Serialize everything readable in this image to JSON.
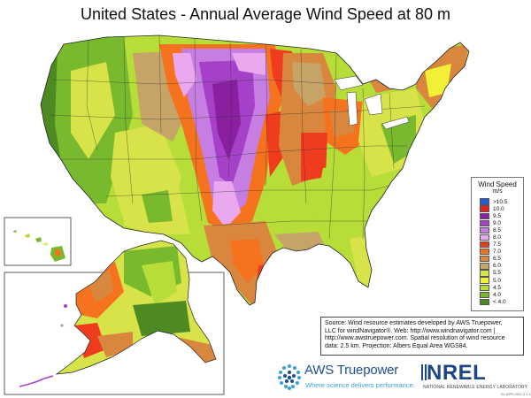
{
  "title": "United States - Annual Average Wind Speed at 80 m",
  "legend": {
    "title": "Wind Speed",
    "unit": "m/s",
    "items": [
      {
        "label": ">10.5",
        "color": "#1f5cd6"
      },
      {
        "label": "10.0",
        "color": "#e8201f"
      },
      {
        "label": "9.5",
        "color": "#8a1fa0"
      },
      {
        "label": "9.0",
        "color": "#a640c8"
      },
      {
        "label": "8.5",
        "color": "#c67ee2"
      },
      {
        "label": "8.0",
        "color": "#eaa9ee"
      },
      {
        "label": "7.5",
        "color": "#ef3c1e"
      },
      {
        "label": "7.0",
        "color": "#f5731f"
      },
      {
        "label": "6.5",
        "color": "#d9873e"
      },
      {
        "label": "6.0",
        "color": "#c6a468"
      },
      {
        "label": "5.5",
        "color": "#d8e34a"
      },
      {
        "label": "5.0",
        "color": "#f0f036"
      },
      {
        "label": "4.5",
        "color": "#b6dd38"
      },
      {
        "label": "4.0",
        "color": "#79b92e"
      },
      {
        "label": "< 4.0",
        "color": "#4e8a22"
      }
    ]
  },
  "source": {
    "line1": "Source: Wind resource estimates developed by AWS Truepower,",
    "line2": "LLC for windNavigator®. Web: http://www.windnavigator.com |",
    "line3": "http://www.awstruepower.com. Spatial resolution of wind resource",
    "line4": "data: 2.5 km. Projection: Albers Equal Area WGS84."
  },
  "logos": {
    "aws_name": "AWS Truepower",
    "aws_tagline": "Where science delivers performance.",
    "nrel_name": "NREL",
    "nrel_subtitle": "NATIONAL RENEWABLE ENERGY LABORATORY"
  },
  "version_note": "01-APR-2011 2.1.1"
}
